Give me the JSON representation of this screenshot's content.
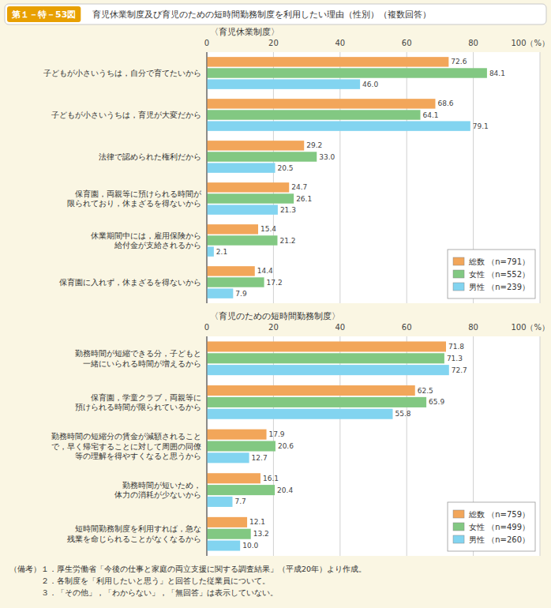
{
  "title": "第１－特－53図",
  "subtitle": "　育児休業制度及び育児のための短時間勤務制度を利用したい理由（性別）（複数回答）",
  "annotations": [
    "（備考）１．厚生労働省「今後の仕事と家庭の両立支援に関する調査結果」（平成20年）より作成。",
    "　　　　２．各制度を「利用したいと思う」と回答した従業員について。",
    "　　　　３．「その他」，「わからない」，「無回答」は表示していない。"
  ],
  "chart_data": [
    {
      "type": "bar",
      "orientation": "horizontal",
      "title": "〈育児休業制度〉",
      "categories": [
        "子どもが小さいうちは，自分で育てたいから",
        "子どもが小さいうちは，育児が大変だから",
        "法律で認められた権利だから",
        "保育園，両親等に預けられる時間が\n限られており，休まざるを得ないから",
        "休業期間中には，雇用保険から\n給付金が支給されるから",
        "保育園に入れず，休まざるを得ないから"
      ],
      "series": [
        {
          "name": "総数  （n=791）",
          "color": "#F2A65A",
          "values": [
            72.6,
            68.6,
            29.2,
            24.7,
            15.4,
            14.4
          ],
          "value_labels": [
            "72.6",
            "68.6",
            "29.2",
            "24.7",
            "15.4",
            "14.4"
          ]
        },
        {
          "name": "女性  （n=552）",
          "color": "#82C882",
          "values": [
            84.1,
            64.1,
            33.0,
            26.1,
            21.2,
            17.2
          ],
          "value_labels": [
            "84.1",
            "64.1",
            "33.0",
            "26.1",
            "21.2",
            "17.2"
          ]
        },
        {
          "name": "男性  （n=239）",
          "color": "#82D4F0",
          "values": [
            46.0,
            79.1,
            20.5,
            21.3,
            2.1,
            7.9
          ],
          "value_labels": [
            "46.0",
            "79.1",
            "20.5",
            "21.3",
            "2.1",
            "7.9"
          ]
        }
      ],
      "xlim": [
        0,
        100
      ],
      "xticks": [
        0,
        20,
        40,
        60,
        80,
        {
          "value": 100,
          "label": "100（%）"
        }
      ],
      "grid": true,
      "data_labels": true,
      "legend": "lower right"
    },
    {
      "type": "bar",
      "orientation": "horizontal",
      "title": "〈育児のための短時間勤務制度〉",
      "categories": [
        "勤務時間が短縮できる分，子どもと\n一緒にいられる時間が増えるから",
        "保育園，学童クラブ，両親等に\n預けられる時間が限られているから",
        "勤務時間の短縮分の賃金が減額されること\nで，早く帰宅することに対して周囲の同僚\n等の理解を得やすくなると思うから",
        "勤務時間が短いため，\n体力の消耗が少ないから",
        "短時間勤務制度を利用すれば，急な\n残業を命じられることがなくなるから"
      ],
      "series": [
        {
          "name": "総数  （n=759）",
          "color": "#F2A65A",
          "values": [
            71.8,
            62.5,
            17.9,
            16.1,
            12.1
          ],
          "value_labels": [
            "71.8",
            "62.5",
            "17.9",
            "16.1",
            "12.1"
          ]
        },
        {
          "name": "女性  （n=499）",
          "color": "#82C882",
          "values": [
            71.3,
            65.9,
            20.6,
            20.4,
            13.2
          ],
          "value_labels": [
            "71.3",
            "65.9",
            "20.6",
            "20.4",
            "13.2"
          ]
        },
        {
          "name": "男性  （n=260）",
          "color": "#82D4F0",
          "values": [
            72.7,
            55.8,
            12.7,
            7.7,
            10.0
          ],
          "value_labels": [
            "72.7",
            "55.8",
            "12.7",
            "7.7",
            "10.0"
          ]
        }
      ],
      "xlim": [
        0,
        100
      ],
      "xticks": [
        0,
        20,
        40,
        60,
        80,
        {
          "value": 100,
          "label": "100（%）"
        }
      ],
      "grid": true,
      "data_labels": true,
      "legend": "lower right"
    }
  ]
}
